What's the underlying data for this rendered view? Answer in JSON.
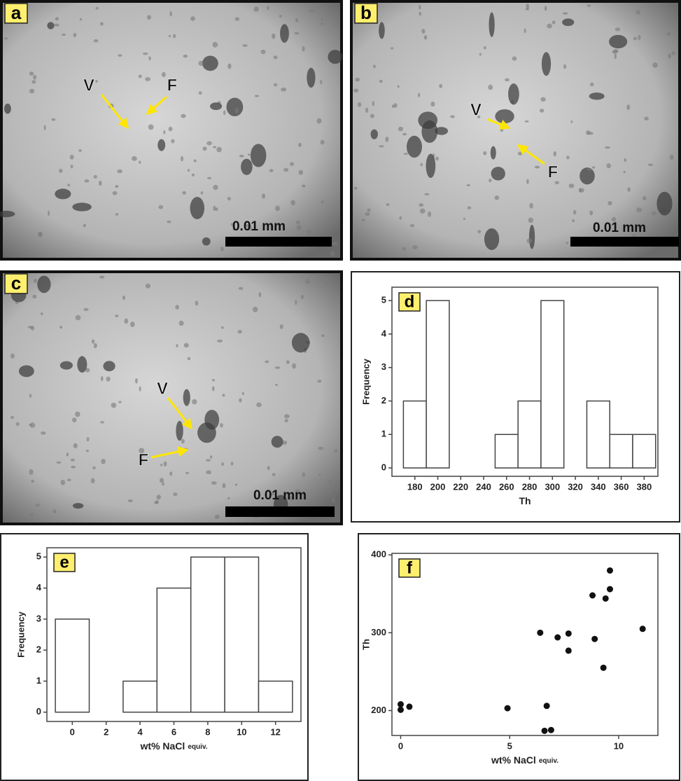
{
  "photos": [
    {
      "label": "a",
      "markers": [
        "V",
        "F"
      ],
      "scale_bar": "0.01 mm"
    },
    {
      "label": "b",
      "markers": [
        "V",
        "F"
      ],
      "scale_bar": "0.01 mm"
    },
    {
      "label": "c",
      "markers": [
        "V",
        "F"
      ],
      "scale_bar": "0.01 mm"
    }
  ],
  "chart_data": [
    {
      "type": "histogram",
      "label": "d",
      "xlabel": "Th",
      "ylabel": "Frequency",
      "bins": [
        170,
        190,
        210,
        230,
        250,
        270,
        290,
        310,
        330,
        350,
        370,
        390
      ],
      "values": [
        2,
        5,
        0,
        0,
        1,
        2,
        5,
        0,
        2,
        1,
        1
      ],
      "xlim": [
        160,
        392
      ],
      "ylim": [
        -0.25,
        5.4
      ],
      "xticks": [
        180,
        200,
        220,
        240,
        260,
        280,
        300,
        320,
        340,
        360,
        380
      ],
      "yticks": [
        0,
        1,
        2,
        3,
        4,
        5
      ],
      "color": "#ffffff"
    },
    {
      "type": "histogram",
      "label": "e",
      "xlabel": "wt% NaCl",
      "xlabel_sub": "equiv.",
      "ylabel": "Frequency",
      "bins": [
        -1,
        1,
        3,
        5,
        7,
        9,
        11,
        13
      ],
      "values": [
        3,
        0,
        1,
        4,
        5,
        5,
        1
      ],
      "xlim": [
        -1.5,
        13.5
      ],
      "ylim": [
        -0.3,
        5.3
      ],
      "xticks": [
        0,
        2,
        4,
        6,
        8,
        10,
        12
      ],
      "yticks": [
        0,
        1,
        2,
        3,
        4,
        5
      ],
      "color": "#ffffff"
    },
    {
      "type": "scatter",
      "label": "f",
      "xlabel": "wt% NaCl",
      "xlabel_sub": "equiv.",
      "ylabel": "Th",
      "x": [
        0,
        0,
        0.4,
        4.9,
        6.4,
        6.7,
        6.6,
        6.9,
        7.2,
        7.7,
        7.7,
        8.9,
        9.3,
        8.8,
        9.4,
        9.6,
        9.6,
        11.1
      ],
      "values": [
        208,
        201,
        205,
        203,
        300,
        206,
        174,
        175,
        294,
        299,
        277,
        292,
        255,
        348,
        344,
        380,
        356,
        305
      ],
      "xlim": [
        -0.4,
        11.8
      ],
      "ylim": [
        168,
        402
      ],
      "xticks": [
        0,
        5,
        10
      ],
      "yticks": [
        200,
        300,
        400
      ],
      "color": "#111111"
    }
  ]
}
